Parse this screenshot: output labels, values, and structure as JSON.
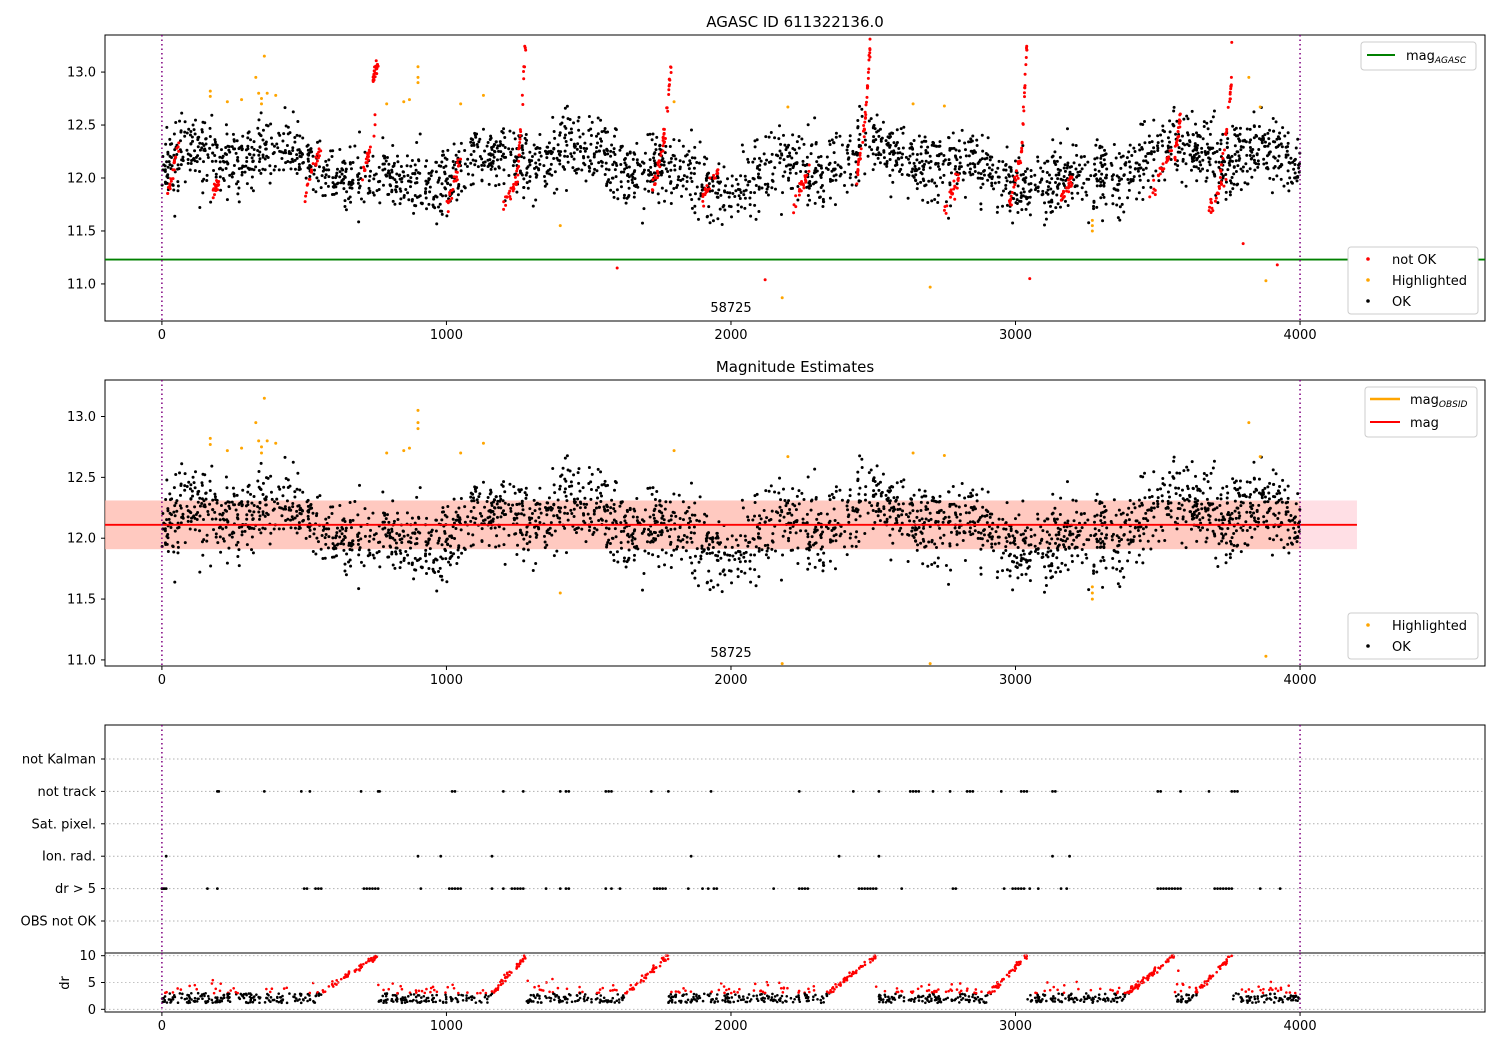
{
  "colors": {
    "ok": "#000000",
    "not_ok": "#ff0000",
    "highlighted": "#ffa500",
    "mag_agasc": "#008000",
    "mag": "#ff0000",
    "mag_obsid": "#ffa500",
    "band": "#ffc0cb",
    "vline": "#800080",
    "grid": "#b0b0b0"
  },
  "chart_data": [
    {
      "type": "scatter",
      "title": "AGASC ID 611322136.0",
      "xlim": [
        -200,
        4650
      ],
      "ylim": [
        10.65,
        13.35
      ],
      "x_ticks": [
        0,
        1000,
        2000,
        3000,
        4000
      ],
      "y_ticks": [
        11.0,
        11.5,
        12.0,
        12.5,
        13.0
      ],
      "annotation": "58725",
      "vertical_lines": [
        0,
        4000
      ],
      "lines": [
        {
          "name": "mag",
          "subscript": "AGASC",
          "y": 11.23,
          "color": "#008000"
        }
      ],
      "legend_lines_position": "upper right",
      "legend_points_position": "lower right",
      "legend_points": [
        {
          "name": "not OK",
          "color": "#ff0000"
        },
        {
          "name": "Highlighted",
          "color": "#ffa500"
        },
        {
          "name": "OK",
          "color": "#000000"
        }
      ],
      "series": [
        {
          "name": "not OK",
          "color": "#ff0000",
          "segments": [
            {
              "x": [
                20,
                60
              ],
              "y": [
                11.85,
                12.3
              ]
            },
            {
              "x": [
                180,
                200
              ],
              "y": [
                11.85,
                11.95
              ]
            },
            {
              "x": [
                500,
                560
              ],
              "y": [
                11.85,
                12.3
              ]
            },
            {
              "x": [
                700,
                750
              ],
              "y": [
                11.95,
                12.5
              ]
            },
            {
              "x": [
                740,
                760
              ],
              "y": [
                12.9,
                13.1
              ]
            },
            {
              "x": [
                1000,
                1050
              ],
              "y": [
                11.7,
                12.2
              ]
            },
            {
              "x": [
                1200,
                1250
              ],
              "y": [
                11.75,
                12.0
              ]
            },
            {
              "x": [
                1250,
                1280
              ],
              "y": [
                12.0,
                13.3
              ]
            },
            {
              "x": [
                1720,
                1770
              ],
              "y": [
                11.8,
                12.4
              ]
            },
            {
              "x": [
                1760,
                1790
              ],
              "y": [
                12.3,
                13.05
              ]
            },
            {
              "x": [
                1900,
                1960
              ],
              "y": [
                11.8,
                12.1
              ]
            },
            {
              "x": [
                2220,
                2280
              ],
              "y": [
                11.75,
                12.1
              ]
            },
            {
              "x": [
                2440,
                2470
              ],
              "y": [
                11.95,
                12.5
              ]
            },
            {
              "x": [
                2470,
                2490
              ],
              "y": [
                12.5,
                13.3
              ]
            },
            {
              "x": [
                2750,
                2800
              ],
              "y": [
                11.7,
                12.0
              ]
            },
            {
              "x": [
                2970,
                3020
              ],
              "y": [
                11.65,
                12.2
              ]
            },
            {
              "x": [
                3020,
                3040
              ],
              "y": [
                12.2,
                13.25
              ]
            },
            {
              "x": [
                3160,
                3200
              ],
              "y": [
                11.8,
                12.0
              ]
            },
            {
              "x": [
                3470,
                3550
              ],
              "y": [
                11.8,
                12.3
              ]
            },
            {
              "x": [
                3560,
                3580
              ],
              "y": [
                12.2,
                12.6
              ]
            },
            {
              "x": [
                3680,
                3740
              ],
              "y": [
                11.7,
                12.0
              ]
            },
            {
              "x": [
                3720,
                3760
              ],
              "y": [
                12.0,
                12.9
              ]
            }
          ],
          "points": [
            [
              1600,
              11.15
            ],
            [
              2120,
              11.04
            ],
            [
              3050,
              11.05
            ],
            [
              3800,
              11.38
            ],
            [
              3920,
              11.18
            ],
            [
              3760,
              13.28
            ]
          ]
        },
        {
          "name": "Highlighted",
          "color": "#ffa500",
          "points": [
            [
              170,
              12.82
            ],
            [
              170,
              12.77
            ],
            [
              230,
              12.72
            ],
            [
              280,
              12.74
            ],
            [
              330,
              12.95
            ],
            [
              340,
              12.8
            ],
            [
              350,
              12.75
            ],
            [
              350,
              12.7
            ],
            [
              360,
              13.15
            ],
            [
              370,
              12.8
            ],
            [
              400,
              12.78
            ],
            [
              790,
              12.7
            ],
            [
              850,
              12.72
            ],
            [
              870,
              12.74
            ],
            [
              900,
              13.05
            ],
            [
              900,
              12.95
            ],
            [
              900,
              12.9
            ],
            [
              1050,
              12.7
            ],
            [
              1130,
              12.78
            ],
            [
              1400,
              11.55
            ],
            [
              1800,
              12.72
            ],
            [
              2200,
              12.67
            ],
            [
              2180,
              10.87
            ],
            [
              2640,
              12.7
            ],
            [
              2700,
              10.97
            ],
            [
              2750,
              12.68
            ],
            [
              3270,
              11.5
            ],
            [
              3270,
              11.55
            ],
            [
              3270,
              11.6
            ],
            [
              3820,
              12.95
            ],
            [
              3860,
              12.67
            ],
            [
              3880,
              11.03
            ]
          ]
        },
        {
          "name": "OK",
          "color": "#000000",
          "points": "dense cloud x 0-4000, y 11.55-12.7, centered near 12.1"
        }
      ]
    },
    {
      "type": "scatter",
      "title": "Magnitude Estimates",
      "xlim": [
        -200,
        4650
      ],
      "ylim": [
        10.95,
        13.3
      ],
      "x_ticks": [
        0,
        1000,
        2000,
        3000,
        4000
      ],
      "y_ticks": [
        11.0,
        11.5,
        12.0,
        12.5,
        13.0
      ],
      "annotation": "58725",
      "vertical_lines": [
        0,
        4000
      ],
      "lines": [
        {
          "name": "mag",
          "subscript": "OBSID",
          "y": 12.11,
          "x_range": [
            -200,
            4200
          ],
          "color": "#ffa500"
        },
        {
          "name": "mag",
          "y": 12.11,
          "x_range": [
            -200,
            4200
          ],
          "color": "#ff0000"
        }
      ],
      "band": {
        "y_low": 11.91,
        "y_high": 12.31,
        "x_range": [
          -200,
          4200
        ]
      },
      "legend_lines_position": "upper right",
      "legend_points_position": "lower right",
      "legend_points": [
        {
          "name": "Highlighted",
          "color": "#ffa500"
        },
        {
          "name": "OK",
          "color": "#000000"
        }
      ]
    },
    {
      "type": "scatter",
      "xlim": [
        -200,
        4650
      ],
      "categories": [
        "not Kalman",
        "not track",
        "Sat. pixel.",
        "Ion. rad.",
        "dr > 5",
        "OBS not OK"
      ],
      "vertical_lines": [
        0,
        4000
      ],
      "grid": "dotted horizontal",
      "flags": {
        "not track": [
          195,
          200,
          360,
          490,
          520,
          700,
          760,
          765,
          1020,
          1030,
          1200,
          1270,
          1400,
          1420,
          1430,
          1560,
          1570,
          1580,
          1720,
          1780,
          1930,
          2240,
          2430,
          2520,
          2630,
          2640,
          2650,
          2660,
          2710,
          2770,
          2830,
          2840,
          2850,
          2950,
          3020,
          3030,
          3040,
          3130,
          3140,
          3500,
          3510,
          3580,
          3680,
          3760,
          3770,
          3780
        ],
        "Ion. rad.": [
          15,
          900,
          980,
          1160,
          1860,
          2380,
          2520,
          3130,
          3190
        ],
        "dr > 5": [
          0,
          5,
          10,
          15,
          160,
          195,
          500,
          510,
          540,
          550,
          560,
          710,
          720,
          730,
          740,
          750,
          760,
          910,
          1010,
          1020,
          1030,
          1040,
          1050,
          1160,
          1200,
          1230,
          1240,
          1250,
          1260,
          1270,
          1350,
          1400,
          1420,
          1430,
          1560,
          1580,
          1610,
          1730,
          1740,
          1750,
          1760,
          1770,
          1850,
          1900,
          1920,
          1940,
          1950,
          2150,
          2240,
          2250,
          2260,
          2270,
          2450,
          2460,
          2470,
          2480,
          2490,
          2500,
          2510,
          2600,
          2780,
          2790,
          2960,
          2990,
          3000,
          3010,
          3020,
          3030,
          3050,
          3080,
          3160,
          3180,
          3500,
          3510,
          3520,
          3530,
          3540,
          3550,
          3560,
          3570,
          3580,
          3700,
          3710,
          3720,
          3730,
          3740,
          3750,
          3760,
          3860,
          3930
        ]
      }
    },
    {
      "type": "scatter",
      "ylabel": "dr",
      "xlim": [
        -200,
        4650
      ],
      "ylim": [
        -0.5,
        10.5
      ],
      "x_ticks": [
        0,
        1000,
        2000,
        3000,
        4000
      ],
      "y_ticks": [
        0,
        5,
        10
      ],
      "vertical_lines": [
        0,
        4000
      ],
      "ramps": [
        [
          540,
          760
        ],
        [
          1150,
          1280
        ],
        [
          1620,
          1780
        ],
        [
          2330,
          2510
        ],
        [
          2900,
          3040
        ],
        [
          3380,
          3560
        ],
        [
          3620,
          3760
        ]
      ],
      "note": "dr values mostly 1-4; red above ~3, black below, ramps rise to 10"
    }
  ]
}
